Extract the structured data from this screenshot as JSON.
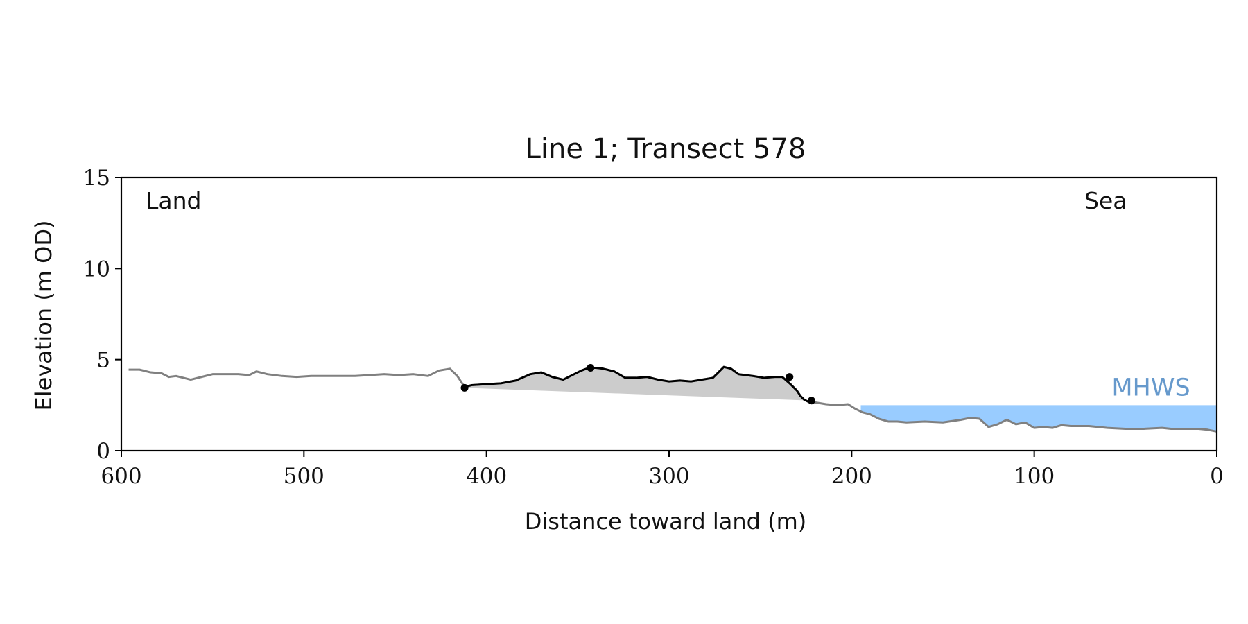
{
  "chart_data": {
    "type": "area",
    "title": "Line 1; Transect 578",
    "xlabel": "Distance toward land (m)",
    "ylabel": "Elevation (m OD)",
    "xlim": [
      600,
      0
    ],
    "x_direction": "reversed",
    "ylim": [
      0,
      15
    ],
    "x_ticks": [
      600,
      500,
      400,
      300,
      200,
      100,
      0
    ],
    "y_ticks": [
      0,
      5,
      10,
      15
    ],
    "grid": false,
    "annotations": {
      "land": "Land",
      "sea": "Sea"
    },
    "colors": {
      "profile": "#808080",
      "highlight": "#000000",
      "fill": "#cccccc",
      "mhws": "#99ccff",
      "mhws_label": "#6699cc",
      "axis": "#000000"
    },
    "series": [
      {
        "role": "profile",
        "x": [
          596,
          590,
          584,
          578,
          574,
          570,
          566,
          562,
          556,
          550,
          544,
          536,
          530,
          526,
          520,
          512,
          504,
          496,
          488,
          480,
          472,
          464,
          456,
          448,
          440,
          432,
          426,
          420,
          416,
          412,
          408,
          400,
          392,
          384,
          376,
          370,
          364,
          358,
          352,
          348,
          344,
          340,
          336,
          330,
          324,
          318,
          312,
          306,
          300,
          294,
          288,
          282,
          276,
          270,
          266,
          262,
          258,
          254,
          248,
          242,
          238,
          234,
          230,
          228,
          226,
          224,
          220,
          214,
          208,
          202,
          198,
          194,
          190,
          185,
          180,
          175,
          170,
          160,
          150,
          140,
          135,
          130,
          125,
          120,
          115,
          110,
          105,
          100,
          95,
          90,
          85,
          80,
          70,
          60,
          50,
          40,
          30,
          25,
          20,
          10,
          5,
          0
        ],
        "y": [
          4.45,
          4.45,
          4.3,
          4.25,
          4.05,
          4.1,
          4.0,
          3.9,
          4.05,
          4.2,
          4.2,
          4.2,
          4.15,
          4.35,
          4.2,
          4.1,
          4.05,
          4.1,
          4.1,
          4.1,
          4.1,
          4.15,
          4.2,
          4.15,
          4.2,
          4.1,
          4.4,
          4.5,
          4.1,
          3.5,
          3.6,
          3.65,
          3.7,
          3.85,
          4.2,
          4.3,
          4.05,
          3.9,
          4.2,
          4.4,
          4.55,
          4.55,
          4.5,
          4.35,
          4.0,
          4.0,
          4.05,
          3.9,
          3.8,
          3.85,
          3.8,
          3.9,
          4.0,
          4.6,
          4.5,
          4.2,
          4.15,
          4.1,
          4.0,
          4.05,
          4.05,
          3.7,
          3.3,
          3.0,
          2.8,
          2.7,
          2.65,
          2.55,
          2.5,
          2.55,
          2.3,
          2.1,
          2.0,
          1.75,
          1.6,
          1.6,
          1.55,
          1.6,
          1.55,
          1.7,
          1.8,
          1.75,
          1.3,
          1.45,
          1.7,
          1.45,
          1.55,
          1.25,
          1.3,
          1.25,
          1.4,
          1.35,
          1.35,
          1.25,
          1.2,
          1.2,
          1.25,
          1.2,
          1.2,
          1.2,
          1.15,
          1.05
        ]
      },
      {
        "role": "highlighted-feature",
        "x": [
          412,
          408,
          400,
          392,
          384,
          376,
          370,
          364,
          358,
          352,
          348,
          344,
          340,
          336,
          330,
          324,
          318,
          312,
          306,
          300,
          294,
          288,
          282,
          276,
          270,
          266,
          262,
          258,
          254,
          248,
          242,
          238,
          234,
          230,
          228,
          226,
          224,
          222
        ],
        "y": [
          3.5,
          3.6,
          3.65,
          3.7,
          3.85,
          4.2,
          4.3,
          4.05,
          3.9,
          4.2,
          4.4,
          4.55,
          4.55,
          4.5,
          4.35,
          4.0,
          4.0,
          4.05,
          3.9,
          3.8,
          3.85,
          3.8,
          3.9,
          4.0,
          4.6,
          4.5,
          4.2,
          4.15,
          4.1,
          4.0,
          4.05,
          4.05,
          3.7,
          3.3,
          3.0,
          2.8,
          2.7,
          2.75
        ],
        "markers": [
          [
            412,
            3.45
          ],
          [
            343,
            4.55
          ],
          [
            234,
            4.05
          ],
          [
            222,
            2.75
          ]
        ]
      }
    ],
    "shaded_region": {
      "x_start": 412,
      "x_end": 222,
      "baseline_start": 3.45,
      "baseline_end": 2.75
    },
    "mhws": {
      "label": "MHWS",
      "level": 2.5,
      "x_start": 195,
      "x_end": 0
    }
  }
}
